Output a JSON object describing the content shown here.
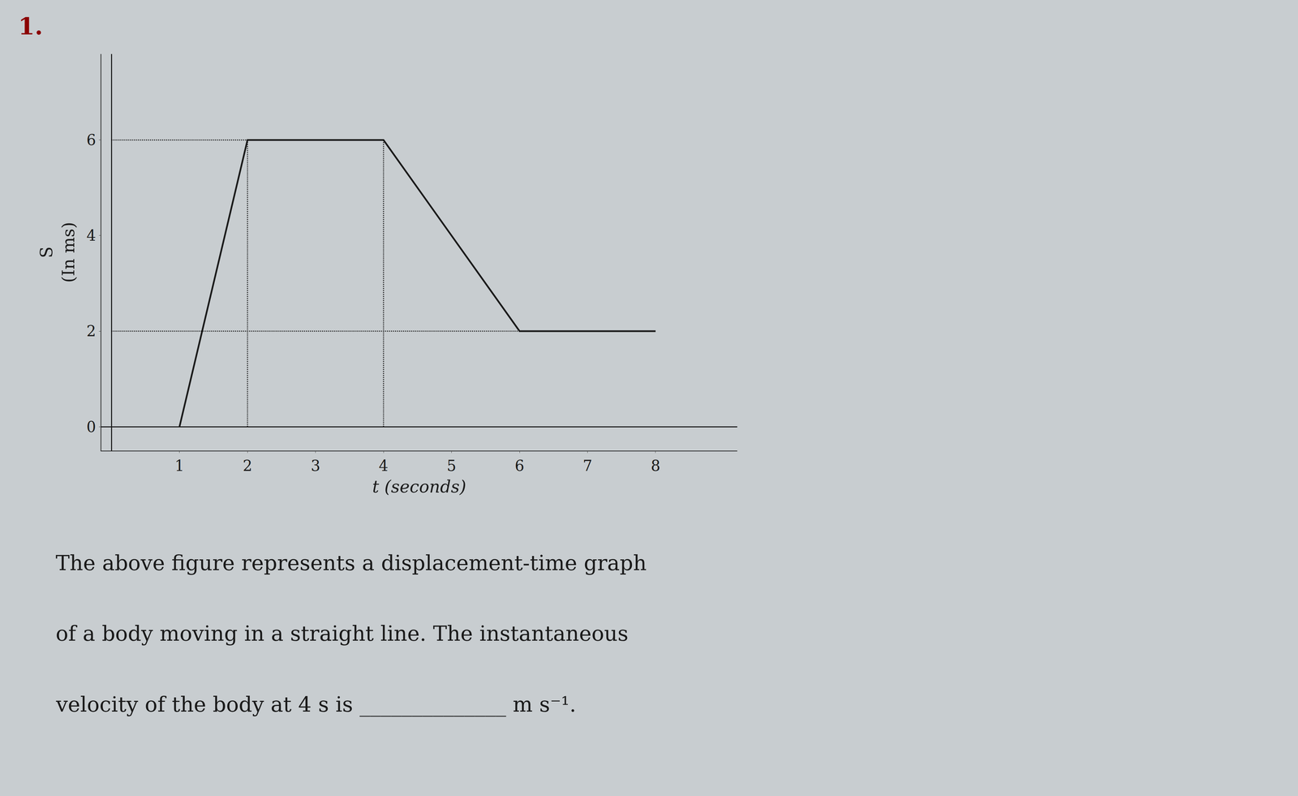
{
  "chart_data": {
    "type": "line",
    "x": [
      1,
      2,
      4,
      6,
      8
    ],
    "values": [
      0,
      6,
      6,
      2,
      2
    ],
    "color": "#1a1a1a",
    "line_style": "solid",
    "reference_lines": [
      {
        "x": [
          0,
          2
        ],
        "y": [
          6,
          6
        ],
        "line_style": "dotted",
        "color": "#1a1a1a"
      },
      {
        "x": [
          2,
          2
        ],
        "y": [
          0,
          6
        ],
        "line_style": "dotted",
        "color": "#1a1a1a"
      },
      {
        "x": [
          0,
          6
        ],
        "y": [
          2,
          2
        ],
        "line_style": "dotted",
        "color": "#1a1a1a"
      },
      {
        "x": [
          4,
          4
        ],
        "y": [
          0,
          6
        ],
        "line_style": "dotted",
        "color": "#1a1a1a"
      }
    ],
    "xlim": [
      -0.15,
      9.2
    ],
    "ylim": [
      -0.5,
      7.8
    ],
    "xticks": [
      1,
      2,
      3,
      4,
      5,
      6,
      7,
      8
    ],
    "yticks": [
      0,
      2,
      4,
      6
    ],
    "xlabel": "t (seconds)",
    "ylabel": "S",
    "ylabel_unit": "(In ms)",
    "grid": false,
    "number_label": "1.",
    "number_label_color": "#8b0000",
    "background_color": "#c8cdd0",
    "caption_lines": [
      "The above figure represents a displacement-time graph",
      "of a body moving in a straight line. The instantaneous",
      "velocity of the body at 4 s is ______________ m s⁻¹."
    ]
  }
}
